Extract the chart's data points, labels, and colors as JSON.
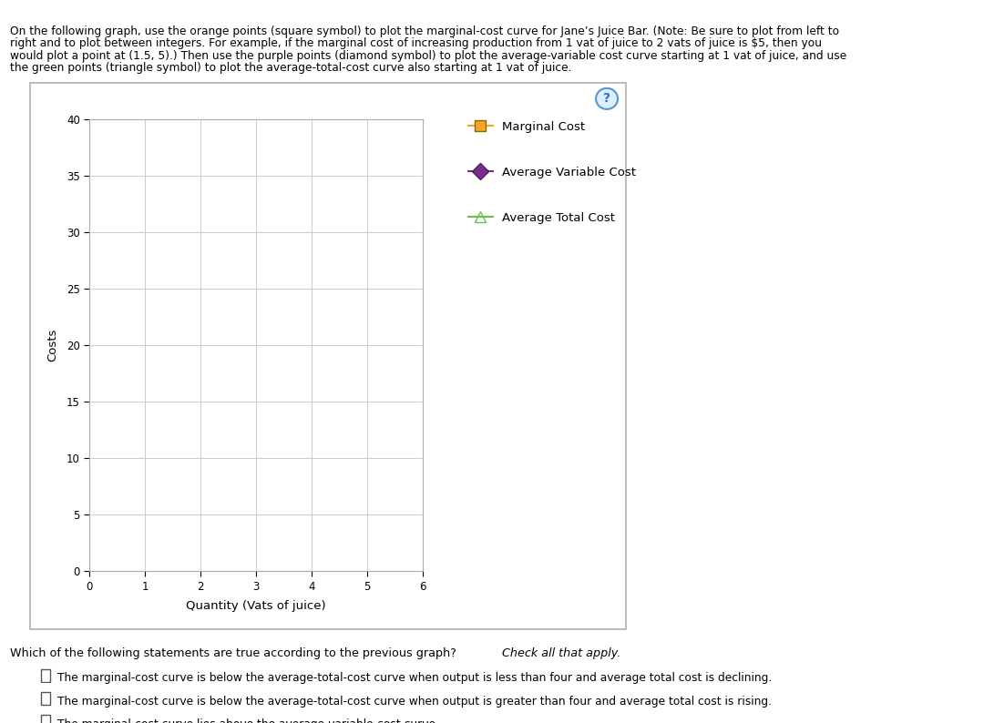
{
  "title": "",
  "xlabel": "Quantity (Vats of juice)",
  "ylabel": "Costs",
  "xlim": [
    0,
    6
  ],
  "ylim": [
    0,
    40
  ],
  "xticks": [
    0,
    1,
    2,
    3,
    4,
    5,
    6
  ],
  "yticks": [
    0,
    5,
    10,
    15,
    20,
    25,
    30,
    35,
    40
  ],
  "legend_entries": [
    "Marginal Cost",
    "Average Variable Cost",
    "Average Total Cost"
  ],
  "mc_color": "#F5A623",
  "avc_color": "#7B2D8B",
  "atc_color": "#6BBF4E",
  "grid_color": "#cccccc",
  "tick_fontsize": 8.5,
  "label_fontsize": 9.5,
  "legend_fontsize": 9.5,
  "fig_width": 10.91,
  "fig_height": 7.94,
  "header_text_line1": "On the following graph, use the orange points (square symbol) to plot the marginal-cost curve for Jane’s Juice Bar. (Note: Be sure to plot from left to",
  "header_text_line2": "right and to plot between integers. For example, if the marginal cost of increasing production from 1 vat of juice to 2 vats of juice is $5, then you",
  "header_text_line3": "would plot a point at (1.5, 5).) Then use the purple points (diamond symbol) to plot the average-variable cost curve starting at 1 vat of juice, and use",
  "header_text_line4": "the green points (triangle symbol) to plot the average-total-cost curve also starting at 1 vat of juice.",
  "q_text": "Which of the following statements are true according to the previous graph? ",
  "q_italic": "Check all that apply.",
  "stmt1": "The marginal-cost curve is below the average-total-cost curve when output is less than four and average total cost is declining.",
  "stmt2": "The marginal-cost curve is below the average-total-cost curve when output is greater than four and average total cost is rising.",
  "stmt3": "The marginal-cost curve lies above the average-variable-cost curve."
}
